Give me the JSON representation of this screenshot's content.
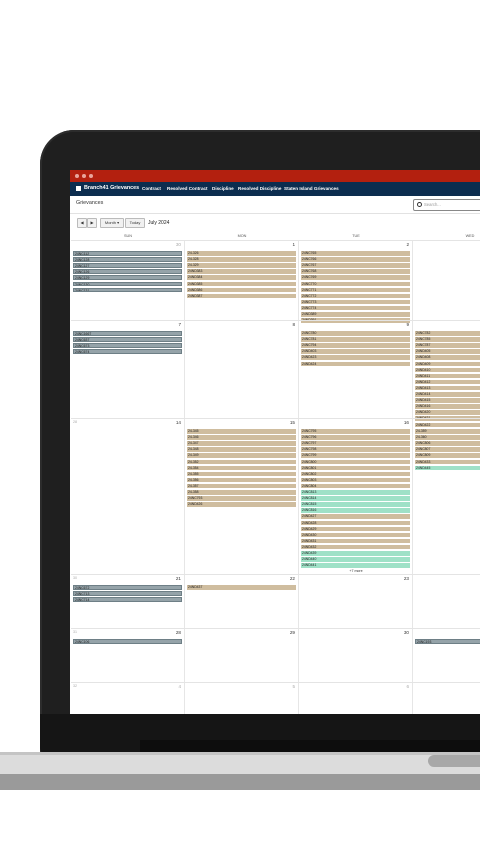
{
  "app": {
    "brand": "Branch41 Grievances",
    "nav": [
      "Contract",
      "Resolved Contract",
      "Discipline",
      "Resolved Discipline",
      "Staten Island Grievances"
    ],
    "page_title": "Grievances",
    "search_placeholder": "Search..."
  },
  "toolbar": {
    "prev": "◀",
    "next": "▶",
    "view": "Month ▾",
    "today": "Today",
    "period": "July 2024"
  },
  "colors": {
    "blue": "#95a3a9",
    "tan": "#cfbd9f",
    "green": "#9fe1c7",
    "titlebar": "#b3200f",
    "navbar": "#0c2d4f"
  },
  "calendar": {
    "dow": [
      "SUN",
      "MON",
      "TUE",
      "WED"
    ],
    "weeks": [
      {
        "wk": "",
        "days": [
          {
            "num": "30",
            "dim": true,
            "events": [
              {
                "t": "24NC112",
                "c": "blue"
              },
              {
                "t": "24NC128",
                "c": "blue"
              },
              {
                "t": "24NC127",
                "c": "blue"
              },
              {
                "t": "24NC126",
                "c": "blue"
              },
              {
                "t": "24NC129",
                "c": "blue"
              },
              {
                "t": "24NC130",
                "c": "blue"
              },
              {
                "t": "24NC131",
                "c": "blue"
              }
            ]
          },
          {
            "num": "1",
            "events": [
              {
                "t": "24-326",
                "c": "tan"
              },
              {
                "t": "24-328",
                "c": "tan"
              },
              {
                "t": "24-329",
                "c": "tan"
              },
              {
                "t": "24ND383",
                "c": "tan"
              },
              {
                "t": "24ND384",
                "c": "tan"
              },
              {
                "t": "24ND385",
                "c": "tan"
              },
              {
                "t": "24ND386",
                "c": "tan"
              },
              {
                "t": "24ND387",
                "c": "tan"
              }
            ]
          },
          {
            "num": "2",
            "events": [
              {
                "t": "24NC765",
                "c": "tan"
              },
              {
                "t": "24NC766",
                "c": "tan"
              },
              {
                "t": "24NC767",
                "c": "tan"
              },
              {
                "t": "24NC768",
                "c": "tan"
              },
              {
                "t": "24NC769",
                "c": "tan"
              },
              {
                "t": "24NC770",
                "c": "tan"
              },
              {
                "t": "24NC771",
                "c": "tan"
              },
              {
                "t": "24NC772",
                "c": "tan"
              },
              {
                "t": "24NC773",
                "c": "tan"
              },
              {
                "t": "24NC774",
                "c": "tan"
              },
              {
                "t": "24ND389",
                "c": "tan"
              },
              {
                "t": "24ND391",
                "c": "tan"
              }
            ]
          },
          {
            "num": "3",
            "events": []
          }
        ]
      },
      {
        "wk": "",
        "days": [
          {
            "num": "7",
            "events": [
              {
                "t": "24NC1667",
                "c": "blue"
              },
              {
                "t": "24NC637",
                "c": "blue"
              },
              {
                "t": "24NC673",
                "c": "blue"
              },
              {
                "t": "24NC674",
                "c": "blue"
              }
            ]
          },
          {
            "num": "8",
            "events": []
          },
          {
            "num": "9",
            "events": [
              {
                "t": "24NC780",
                "c": "tan"
              },
              {
                "t": "24NC781",
                "c": "tan"
              },
              {
                "t": "24NC794",
                "c": "tan"
              },
              {
                "t": "24ND403",
                "c": "tan"
              },
              {
                "t": "24ND423",
                "c": "tan"
              },
              {
                "t": "24ND424",
                "c": "tan"
              }
            ]
          },
          {
            "num": "10",
            "events": [
              {
                "t": "24NC782",
                "c": "tan"
              },
              {
                "t": "24NC785",
                "c": "tan"
              },
              {
                "t": "24NC787",
                "c": "tan"
              },
              {
                "t": "24ND405",
                "c": "tan"
              },
              {
                "t": "24ND408",
                "c": "tan"
              },
              {
                "t": "24ND409",
                "c": "tan"
              },
              {
                "t": "24ND410",
                "c": "tan"
              },
              {
                "t": "24ND411",
                "c": "tan"
              },
              {
                "t": "24ND412",
                "c": "tan"
              },
              {
                "t": "24ND413",
                "c": "tan"
              },
              {
                "t": "24ND414",
                "c": "tan"
              },
              {
                "t": "24ND415",
                "c": "tan"
              },
              {
                "t": "24ND416",
                "c": "tan"
              },
              {
                "t": "24ND420",
                "c": "tan"
              },
              {
                "t": "24ND421",
                "c": "tan"
              },
              {
                "t": "24ND422",
                "c": "tan"
              }
            ]
          }
        ]
      },
      {
        "wk": "28",
        "days": [
          {
            "num": "14",
            "events": []
          },
          {
            "num": "15",
            "events": [
              {
                "t": "24-345",
                "c": "tan"
              },
              {
                "t": "24-346",
                "c": "tan"
              },
              {
                "t": "24-347",
                "c": "tan"
              },
              {
                "t": "24-348",
                "c": "tan"
              },
              {
                "t": "24-349",
                "c": "tan"
              },
              {
                "t": "24-352",
                "c": "tan"
              },
              {
                "t": "24-354",
                "c": "tan"
              },
              {
                "t": "24-355",
                "c": "tan"
              },
              {
                "t": "24-356",
                "c": "tan"
              },
              {
                "t": "24-357",
                "c": "tan"
              },
              {
                "t": "24-358",
                "c": "tan"
              },
              {
                "t": "24NC793",
                "c": "tan"
              },
              {
                "t": "24ND426",
                "c": "tan"
              }
            ]
          },
          {
            "num": "16",
            "events": [
              {
                "t": "24NC795",
                "c": "tan"
              },
              {
                "t": "24NC796",
                "c": "tan"
              },
              {
                "t": "24NC797",
                "c": "tan"
              },
              {
                "t": "24NC798",
                "c": "tan"
              },
              {
                "t": "24NC799",
                "c": "tan"
              },
              {
                "t": "24NC800",
                "c": "tan"
              },
              {
                "t": "24NC801",
                "c": "tan"
              },
              {
                "t": "24NC802",
                "c": "tan"
              },
              {
                "t": "24NC803",
                "c": "tan"
              },
              {
                "t": "24NC804",
                "c": "tan"
              },
              {
                "t": "24NC813",
                "c": "green"
              },
              {
                "t": "24NC814",
                "c": "green"
              },
              {
                "t": "24NC815",
                "c": "green"
              },
              {
                "t": "24NC816",
                "c": "green"
              },
              {
                "t": "24ND427",
                "c": "tan"
              },
              {
                "t": "24ND428",
                "c": "tan"
              },
              {
                "t": "24ND429",
                "c": "tan"
              },
              {
                "t": "24ND430",
                "c": "tan"
              },
              {
                "t": "24ND431",
                "c": "tan"
              },
              {
                "t": "24ND432",
                "c": "tan"
              },
              {
                "t": "24ND439",
                "c": "green"
              },
              {
                "t": "24ND440",
                "c": "green"
              },
              {
                "t": "24ND441",
                "c": "green"
              }
            ]
          },
          {
            "num": "17",
            "events": [
              {
                "t": "24-359",
                "c": "tan"
              },
              {
                "t": "24-360",
                "c": "tan"
              },
              {
                "t": "24NC806",
                "c": "tan"
              },
              {
                "t": "24NC807",
                "c": "tan"
              },
              {
                "t": "24NC809",
                "c": "tan"
              },
              {
                "t": "24ND433",
                "c": "tan"
              },
              {
                "t": "24ND445",
                "c": "green"
              }
            ]
          }
        ]
      },
      {
        "wk": "30",
        "more": "+7 more",
        "days": [
          {
            "num": "21",
            "events": [
              {
                "t": "24NC672",
                "c": "blue"
              },
              {
                "t": "24NC713",
                "c": "blue"
              },
              {
                "t": "24NC714",
                "c": "blue"
              }
            ]
          },
          {
            "num": "22",
            "events": [
              {
                "t": "24ND437",
                "c": "tan"
              }
            ]
          },
          {
            "num": "23",
            "events": []
          },
          {
            "num": "24",
            "events": []
          }
        ]
      },
      {
        "wk": "31",
        "days": [
          {
            "num": "28",
            "events": [
              {
                "t": "24NC106",
                "c": "blue"
              }
            ]
          },
          {
            "num": "29",
            "events": []
          },
          {
            "num": "30",
            "events": []
          },
          {
            "num": "31",
            "events": [
              {
                "t": "24NC193",
                "c": "blue"
              }
            ]
          }
        ]
      },
      {
        "wk": "32",
        "days": [
          {
            "num": "4",
            "dim": true,
            "events": []
          },
          {
            "num": "5",
            "dim": true,
            "events": []
          },
          {
            "num": "6",
            "dim": true,
            "events": []
          },
          {
            "num": "7",
            "dim": true,
            "events": []
          }
        ]
      }
    ]
  }
}
